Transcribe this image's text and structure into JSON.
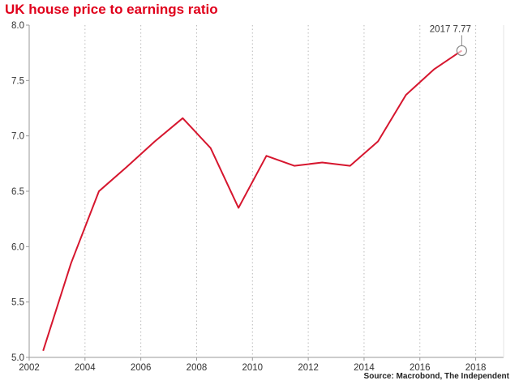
{
  "title": "UK house price to earnings ratio",
  "source": "Source: Macrobond, The Independent",
  "colors": {
    "title": "#e0001b",
    "line": "#d6162e",
    "axis": "#999999",
    "grid": "#bbbbbb"
  },
  "chart_data": {
    "type": "line",
    "title": "UK house price to earnings ratio",
    "xlabel": "",
    "ylabel": "",
    "xlim": [
      2002,
      2019
    ],
    "ylim": [
      5.0,
      8.0
    ],
    "x_ticks": [
      2002,
      2004,
      2006,
      2008,
      2010,
      2012,
      2014,
      2016,
      2018
    ],
    "y_ticks": [
      5.0,
      5.5,
      6.0,
      6.5,
      7.0,
      7.5,
      8.0
    ],
    "y_tick_labels": [
      "5.0",
      "5.5",
      "6.0",
      "6.5",
      "7.0",
      "7.5",
      "8.0"
    ],
    "grid": "vertical dotted lines at x ticks",
    "series": [
      {
        "x": [
          2002.5,
          2003.5,
          2004.5,
          2005.5,
          2006.5,
          2007.5,
          2008.5,
          2009.5,
          2010.5,
          2011.5,
          2012.5,
          2013.5,
          2014.5,
          2015.5,
          2016.5,
          2017.5
        ],
        "values": [
          5.06,
          5.85,
          6.5,
          6.72,
          6.95,
          7.16,
          6.89,
          6.35,
          6.82,
          6.73,
          6.76,
          6.73,
          6.95,
          7.37,
          7.6,
          7.77
        ]
      }
    ],
    "annotation": {
      "label": "2017 7.77",
      "x": 2017.5,
      "y": 7.77
    }
  }
}
